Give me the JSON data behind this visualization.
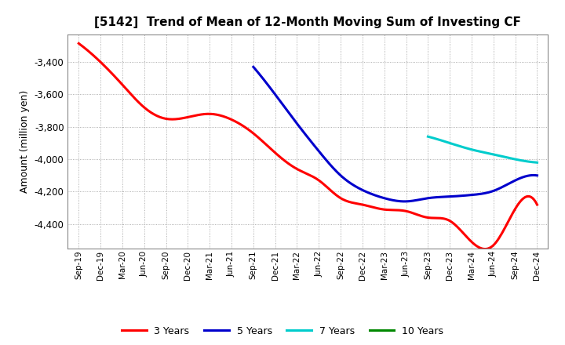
{
  "title": "[5142]  Trend of Mean of 12-Month Moving Sum of Investing CF",
  "ylabel": "Amount (million yen)",
  "background_color": "#ffffff",
  "plot_bg_color": "#ffffff",
  "grid_color": "#999999",
  "ylim": [
    -4550,
    -3230
  ],
  "yticks": [
    -4400,
    -4200,
    -4000,
    -3800,
    -3600,
    -3400
  ],
  "x_labels": [
    "Sep-19",
    "Dec-19",
    "Mar-20",
    "Jun-20",
    "Sep-20",
    "Dec-20",
    "Mar-21",
    "Jun-21",
    "Sep-21",
    "Dec-21",
    "Mar-22",
    "Jun-22",
    "Sep-22",
    "Dec-22",
    "Mar-23",
    "Jun-23",
    "Sep-23",
    "Dec-23",
    "Mar-24",
    "Jun-24",
    "Sep-24",
    "Dec-24"
  ],
  "series": {
    "3yr": {
      "color": "#ff0000",
      "label": "3 Years",
      "indices": [
        0,
        1,
        2,
        3,
        4,
        5,
        6,
        7,
        8,
        9,
        10,
        11,
        12,
        13,
        14,
        15,
        16,
        17,
        18,
        19,
        20,
        21
      ],
      "values": [
        -3285,
        -3400,
        -3540,
        -3680,
        -3750,
        -3740,
        -3720,
        -3755,
        -3840,
        -3960,
        -4060,
        -4130,
        -4240,
        -4280,
        -4310,
        -4320,
        -4360,
        -4380,
        -4510,
        -4530,
        -4305,
        -4280
      ]
    },
    "5yr": {
      "color": "#0000cc",
      "label": "5 Years",
      "indices": [
        8,
        9,
        10,
        11,
        12,
        13,
        14,
        15,
        16,
        17,
        18,
        19,
        20,
        21
      ],
      "values": [
        -3430,
        -3600,
        -3780,
        -3950,
        -4100,
        -4190,
        -4240,
        -4260,
        -4240,
        -4230,
        -4220,
        -4195,
        -4130,
        -4100
      ]
    },
    "7yr": {
      "color": "#00cccc",
      "label": "7 Years",
      "indices": [
        16,
        17,
        18,
        19,
        20,
        21
      ],
      "values": [
        -3860,
        -3900,
        -3940,
        -3970,
        -4000,
        -4020
      ]
    },
    "10yr": {
      "color": "#008800",
      "label": "10 Years",
      "indices": [],
      "values": []
    }
  }
}
